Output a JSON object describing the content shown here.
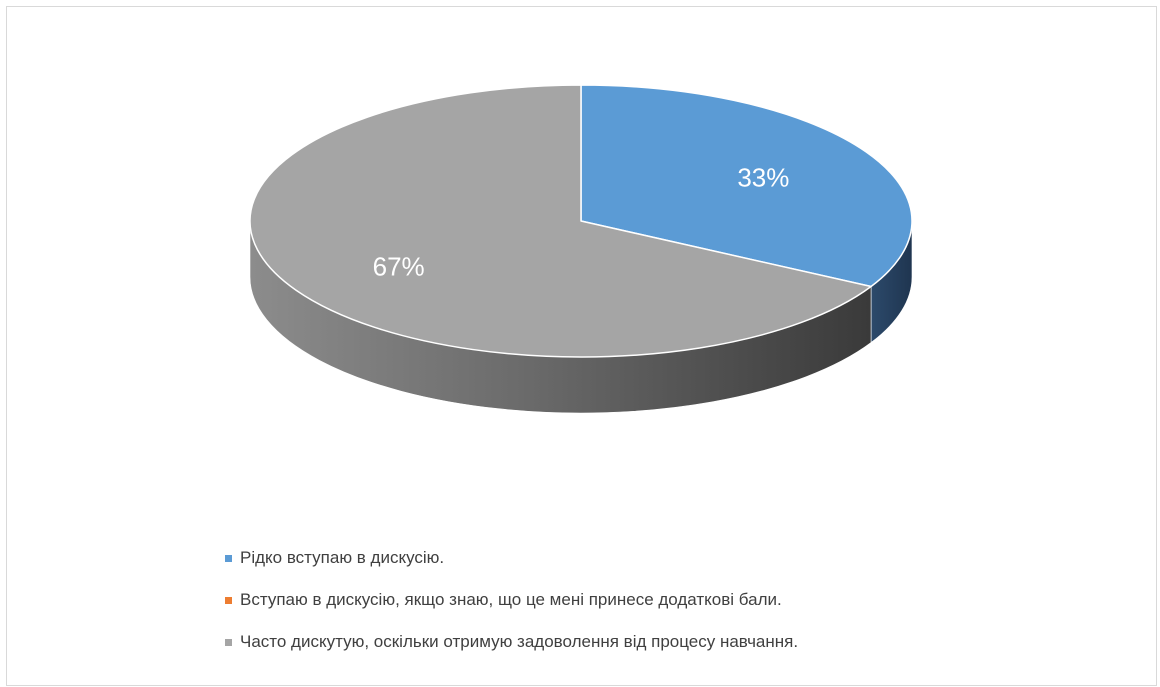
{
  "chart_data": {
    "type": "pie",
    "style": "3d",
    "title": "",
    "categories": [
      "Рідко вступаю в дискусію.",
      "Вступаю в дискусію, якщо знаю, що це мені принесе додаткові бали.",
      "Часто дискутую, оскільки отримую задоволення від процесу навчання."
    ],
    "values": [
      33,
      0,
      67
    ],
    "data_labels": [
      "33%",
      "",
      "67%"
    ],
    "colors": [
      "#5b9bd5",
      "#ed7d31",
      "#a5a5a5"
    ],
    "legend_position": "bottom"
  }
}
